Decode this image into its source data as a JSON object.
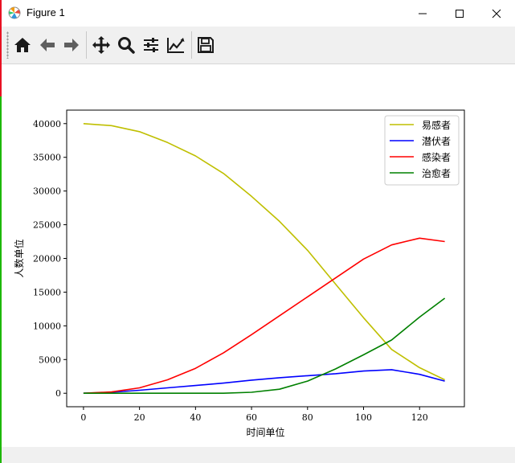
{
  "window": {
    "title": "Figure 1"
  },
  "toolbar": {
    "buttons": [
      {
        "icon": "home-icon"
      },
      {
        "icon": "back-arrow-icon"
      },
      {
        "icon": "forward-arrow-icon"
      },
      {
        "icon": "pan-icon"
      },
      {
        "icon": "zoom-icon"
      },
      {
        "icon": "configure-subplots-icon"
      },
      {
        "icon": "edit-axis-icon"
      },
      {
        "icon": "save-icon"
      }
    ]
  },
  "chart_data": {
    "type": "line",
    "title": "",
    "xlabel": "时间单位",
    "ylabel": "人数单位",
    "xlim": [
      -6,
      136
    ],
    "ylim": [
      -2000,
      42000
    ],
    "xticks": [
      0,
      20,
      40,
      60,
      80,
      100,
      120
    ],
    "yticks": [
      0,
      5000,
      10000,
      15000,
      20000,
      25000,
      30000,
      35000,
      40000
    ],
    "grid": false,
    "legend_position": "top-right",
    "x": [
      0,
      10,
      20,
      30,
      40,
      50,
      60,
      70,
      80,
      90,
      100,
      110,
      120,
      129
    ],
    "series": [
      {
        "name": "易感者",
        "color": "#bfbf00",
        "values": [
          40000,
          39700,
          38800,
          37200,
          35200,
          32600,
          29200,
          25500,
          21200,
          16200,
          11200,
          6500,
          3800,
          2000
        ]
      },
      {
        "name": "潜伏者",
        "color": "#0000ff",
        "values": [
          0,
          150,
          450,
          800,
          1150,
          1500,
          1950,
          2300,
          2600,
          2900,
          3300,
          3500,
          2800,
          1800
        ]
      },
      {
        "name": "感染者",
        "color": "#ff0000",
        "values": [
          0,
          200,
          800,
          2000,
          3700,
          6000,
          8700,
          11500,
          14300,
          17100,
          19900,
          22000,
          23000,
          22500
        ]
      },
      {
        "name": "治愈者",
        "color": "#008000",
        "values": [
          0,
          0,
          0,
          0,
          0,
          0,
          150,
          600,
          1800,
          3600,
          5700,
          7900,
          11300,
          14100
        ]
      }
    ]
  }
}
